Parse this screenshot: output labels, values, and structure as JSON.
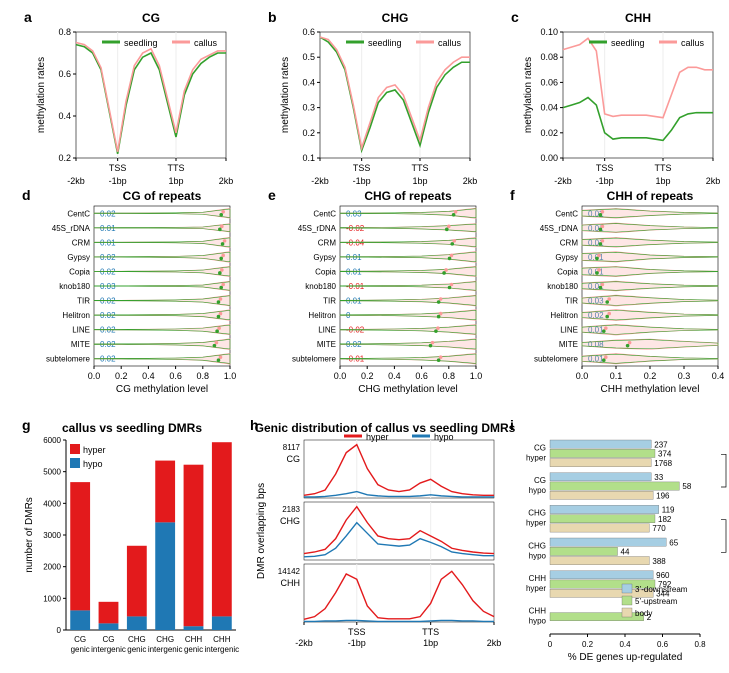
{
  "colors": {
    "seedling": "#33a02c",
    "callus": "#fb9a99",
    "hyper": "#e31a1c",
    "hypo": "#1f78b4",
    "bar_down": "#a6cee3",
    "bar_up": "#b2df8a",
    "bar_body": "#e8d8b0",
    "text": "#000000",
    "blue_label": "#1f78b4",
    "red_label": "#e31a1c",
    "axis": "#000000",
    "bg": "#ffffff",
    "grid_light": "#eeeeee"
  },
  "font": {
    "panel_letter": 14,
    "title": 12,
    "axis_label": 10,
    "tick": 9,
    "small": 8
  },
  "row1": {
    "x_ticks": [
      "-2kb",
      "-1bp",
      "1bp",
      "2kb"
    ],
    "tss_tts": [
      "TSS",
      "TTS"
    ],
    "legend": [
      "seedling",
      "callus"
    ],
    "panels": {
      "a": {
        "title": "CG",
        "ylim": [
          0.2,
          0.8
        ],
        "yticks": [
          0.2,
          0.4,
          0.6,
          0.8
        ],
        "seedling": [
          0.74,
          0.73,
          0.7,
          0.62,
          0.42,
          0.22,
          0.45,
          0.62,
          0.68,
          0.7,
          0.62,
          0.46,
          0.3,
          0.5,
          0.6,
          0.65,
          0.68,
          0.7,
          0.7
        ],
        "callus": [
          0.75,
          0.74,
          0.71,
          0.63,
          0.43,
          0.23,
          0.47,
          0.64,
          0.7,
          0.72,
          0.64,
          0.48,
          0.32,
          0.52,
          0.62,
          0.67,
          0.69,
          0.71,
          0.71
        ]
      },
      "b": {
        "title": "CHG",
        "ylim": [
          0.1,
          0.6
        ],
        "yticks": [
          0.1,
          0.2,
          0.3,
          0.4,
          0.5,
          0.6
        ],
        "seedling": [
          0.58,
          0.56,
          0.52,
          0.45,
          0.3,
          0.13,
          0.22,
          0.32,
          0.36,
          0.37,
          0.33,
          0.24,
          0.15,
          0.28,
          0.38,
          0.43,
          0.46,
          0.48,
          0.48
        ],
        "callus": [
          0.58,
          0.57,
          0.53,
          0.46,
          0.31,
          0.14,
          0.24,
          0.34,
          0.38,
          0.39,
          0.35,
          0.26,
          0.17,
          0.3,
          0.4,
          0.45,
          0.48,
          0.5,
          0.5
        ]
      },
      "c": {
        "title": "CHH",
        "ylim": [
          0.0,
          0.1
        ],
        "yticks": [
          0.0,
          0.02,
          0.04,
          0.06,
          0.08,
          0.1
        ],
        "seedling": [
          0.04,
          0.042,
          0.044,
          0.048,
          0.042,
          0.02,
          0.015,
          0.016,
          0.016,
          0.016,
          0.016,
          0.015,
          0.014,
          0.022,
          0.032,
          0.035,
          0.036,
          0.036,
          0.036
        ],
        "callus": [
          0.086,
          0.088,
          0.09,
          0.095,
          0.085,
          0.035,
          0.033,
          0.034,
          0.034,
          0.034,
          0.034,
          0.033,
          0.032,
          0.05,
          0.068,
          0.072,
          0.072,
          0.07,
          0.07
        ]
      }
    }
  },
  "row2_repeats": [
    "CentC",
    "45S_rDNA",
    "CRM",
    "Gypsy",
    "Copia",
    "knob180",
    "TIR",
    "Helitron",
    "LINE",
    "MITE",
    "subtelomere"
  ],
  "row2": {
    "d": {
      "title": "CG of repeats",
      "xlabel": "CG methylation level",
      "xlim": [
        0.0,
        1.0
      ],
      "xticks": [
        0.0,
        0.2,
        0.4,
        0.6,
        0.8,
        1.0
      ],
      "labels": [
        "0.02",
        "0.01",
        "0.01",
        "0.02",
        "0.02",
        "0.03",
        "0.02",
        "0.02",
        "0.02",
        "0.02",
        "0.02"
      ],
      "label_colors": [
        "b",
        "b",
        "b",
        "b",
        "b",
        "b",
        "b",
        "b",
        "b",
        "b",
        "b"
      ],
      "widths": [
        [
          0.03,
          0.04,
          0.05,
          0.08,
          0.18,
          0.8
        ],
        [
          0.03,
          0.04,
          0.05,
          0.08,
          0.15,
          0.7
        ],
        [
          0.03,
          0.04,
          0.05,
          0.08,
          0.2,
          0.85
        ],
        [
          0.03,
          0.04,
          0.06,
          0.1,
          0.25,
          0.9
        ],
        [
          0.03,
          0.04,
          0.06,
          0.1,
          0.25,
          0.85
        ],
        [
          0.03,
          0.04,
          0.05,
          0.08,
          0.18,
          0.8
        ],
        [
          0.04,
          0.05,
          0.07,
          0.12,
          0.28,
          0.9
        ],
        [
          0.04,
          0.05,
          0.07,
          0.12,
          0.28,
          0.88
        ],
        [
          0.04,
          0.05,
          0.07,
          0.12,
          0.28,
          0.85
        ],
        [
          0.05,
          0.06,
          0.08,
          0.14,
          0.3,
          0.9
        ],
        [
          0.04,
          0.05,
          0.07,
          0.12,
          0.28,
          0.88
        ]
      ],
      "medians": [
        0.95,
        0.94,
        0.96,
        0.95,
        0.94,
        0.95,
        0.93,
        0.93,
        0.92,
        0.9,
        0.93
      ]
    },
    "e": {
      "title": "CHG of repeats",
      "xlabel": "CHG methylation level",
      "xlim": [
        0.0,
        1.0
      ],
      "xticks": [
        0.0,
        0.2,
        0.4,
        0.6,
        0.8,
        1.0
      ],
      "labels": [
        "0.03",
        "-0.02",
        "-0.04",
        "0.01",
        "0.01",
        "-0.01",
        "0.01",
        "0",
        "-0.02",
        "0.02",
        "-0.01"
      ],
      "label_colors": [
        "b",
        "r",
        "r",
        "b",
        "b",
        "r",
        "b",
        "b",
        "r",
        "b",
        "r"
      ],
      "widths": [
        [
          0.04,
          0.05,
          0.08,
          0.15,
          0.35,
          0.85
        ],
        [
          0.05,
          0.06,
          0.1,
          0.2,
          0.4,
          0.7
        ],
        [
          0.04,
          0.05,
          0.08,
          0.15,
          0.35,
          0.8
        ],
        [
          0.04,
          0.05,
          0.08,
          0.15,
          0.4,
          0.9
        ],
        [
          0.05,
          0.06,
          0.1,
          0.18,
          0.4,
          0.85
        ],
        [
          0.04,
          0.05,
          0.08,
          0.15,
          0.35,
          0.8
        ],
        [
          0.05,
          0.07,
          0.12,
          0.22,
          0.45,
          0.9
        ],
        [
          0.05,
          0.07,
          0.12,
          0.22,
          0.45,
          0.88
        ],
        [
          0.05,
          0.07,
          0.12,
          0.22,
          0.45,
          0.85
        ],
        [
          0.06,
          0.08,
          0.14,
          0.25,
          0.5,
          0.9
        ],
        [
          0.05,
          0.07,
          0.12,
          0.22,
          0.45,
          0.88
        ]
      ],
      "medians": [
        0.85,
        0.8,
        0.84,
        0.82,
        0.78,
        0.82,
        0.74,
        0.74,
        0.72,
        0.68,
        0.74
      ]
    },
    "f": {
      "title": "CHH of repeats",
      "xlabel": "CHH methylation level",
      "xlim": [
        0.0,
        0.4
      ],
      "xticks": [
        0.0,
        0.1,
        0.2,
        0.3,
        0.4
      ],
      "labels": [
        "0.02",
        "0.01",
        "0.01",
        "0.01",
        "0.01",
        "0.01",
        "0.03",
        "0.02",
        "0.01",
        "0.08",
        "0.01"
      ],
      "label_colors": [
        "b",
        "b",
        "b",
        "b",
        "b",
        "b",
        "b",
        "b",
        "b",
        "b",
        "b"
      ],
      "widths": [
        [
          0.5,
          0.8,
          0.4,
          0.15,
          0.05
        ],
        [
          0.5,
          0.8,
          0.4,
          0.15,
          0.05
        ],
        [
          0.5,
          0.8,
          0.4,
          0.15,
          0.05
        ],
        [
          0.6,
          0.85,
          0.35,
          0.12,
          0.04
        ],
        [
          0.6,
          0.85,
          0.35,
          0.12,
          0.04
        ],
        [
          0.5,
          0.8,
          0.4,
          0.15,
          0.05
        ],
        [
          0.45,
          0.9,
          0.5,
          0.18,
          0.06
        ],
        [
          0.45,
          0.9,
          0.5,
          0.18,
          0.06
        ],
        [
          0.45,
          0.88,
          0.45,
          0.16,
          0.05
        ],
        [
          0.3,
          0.7,
          0.85,
          0.5,
          0.2
        ],
        [
          0.45,
          0.85,
          0.42,
          0.14,
          0.05
        ]
      ],
      "medians": [
        0.06,
        0.06,
        0.06,
        0.05,
        0.05,
        0.06,
        0.08,
        0.08,
        0.07,
        0.14,
        0.07
      ]
    }
  },
  "g": {
    "title": "callus vs seedling DMRs",
    "ylabel": "number of DMRs",
    "yticks": [
      0,
      1000,
      2000,
      3000,
      4000,
      5000,
      6000
    ],
    "cats": [
      "CG\ngenic",
      "CG\nintergenic",
      "CHG\ngenic",
      "CHG\nintergenic",
      "CHH\ngenic",
      "CHH\nintergenic"
    ],
    "hyper": [
      4050,
      680,
      2230,
      1950,
      5100,
      5500
    ],
    "hypo": [
      620,
      210,
      430,
      3400,
      120,
      430
    ],
    "legend": [
      "hyper",
      "hypo"
    ]
  },
  "h": {
    "title": "Genic distribution of callus vs seedling DMRs",
    "ylabel": "DMR overlapping bps",
    "x_ticks": [
      "-2kb",
      "-1bp",
      "1bp",
      "2kb"
    ],
    "tss_tts": [
      "TSS",
      "TTS"
    ],
    "legend": [
      "hyper",
      "hypo"
    ],
    "tracks": {
      "CG": {
        "max": 8117,
        "hyper": [
          0.05,
          0.08,
          0.15,
          0.45,
          0.85,
          1.0,
          0.55,
          0.25,
          0.15,
          0.12,
          0.15,
          0.28,
          0.35,
          0.22,
          0.12,
          0.08,
          0.06,
          0.05,
          0.05
        ],
        "hypo": [
          0.02,
          0.02,
          0.03,
          0.05,
          0.08,
          0.12,
          0.06,
          0.04,
          0.03,
          0.03,
          0.03,
          0.04,
          0.06,
          0.04,
          0.03,
          0.02,
          0.02,
          0.02,
          0.02
        ]
      },
      "CHG": {
        "max": 2183,
        "hyper": [
          0.12,
          0.15,
          0.2,
          0.4,
          0.75,
          1.0,
          0.7,
          0.45,
          0.4,
          0.38,
          0.4,
          0.55,
          0.45,
          0.35,
          0.22,
          0.18,
          0.15,
          0.13,
          0.12
        ],
        "hypo": [
          0.06,
          0.07,
          0.1,
          0.22,
          0.45,
          0.7,
          0.5,
          0.3,
          0.28,
          0.26,
          0.28,
          0.4,
          0.33,
          0.25,
          0.15,
          0.12,
          0.1,
          0.08,
          0.08
        ]
      },
      "CHH": {
        "max": 14142,
        "hyper": [
          0.05,
          0.1,
          0.25,
          0.55,
          0.9,
          0.8,
          0.3,
          0.08,
          0.06,
          0.06,
          0.06,
          0.1,
          0.35,
          0.8,
          0.95,
          0.7,
          0.4,
          0.2,
          0.1
        ],
        "hypo": [
          0.01,
          0.01,
          0.02,
          0.02,
          0.03,
          0.03,
          0.02,
          0.01,
          0.01,
          0.01,
          0.01,
          0.01,
          0.02,
          0.03,
          0.03,
          0.02,
          0.02,
          0.01,
          0.01
        ]
      }
    }
  },
  "i": {
    "xlabel": "% DE genes up-regulated",
    "xticks": [
      0,
      0.2,
      0.4,
      0.6,
      0.8
    ],
    "legend": [
      "3'-downstream",
      "5'-upstream",
      "body"
    ],
    "groups": [
      {
        "name": "CG\nhyper",
        "down": {
          "v": 0.54,
          "n": "237"
        },
        "up": {
          "v": 0.56,
          "n": "374"
        },
        "body": {
          "v": 0.54,
          "n": "1768"
        }
      },
      {
        "name": "CG\nhypo",
        "down": {
          "v": 0.54,
          "n": "33"
        },
        "up": {
          "v": 0.69,
          "n": "58"
        },
        "body": {
          "v": 0.55,
          "n": "196"
        }
      },
      {
        "name": "CHG\nhyper",
        "down": {
          "v": 0.58,
          "n": "119"
        },
        "up": {
          "v": 0.56,
          "n": "182"
        },
        "body": {
          "v": 0.53,
          "n": "770"
        }
      },
      {
        "name": "CHG\nhypo",
        "down": {
          "v": 0.62,
          "n": "65"
        },
        "up": {
          "v": 0.36,
          "n": "44"
        },
        "body": {
          "v": 0.53,
          "n": "388"
        }
      },
      {
        "name": "CHH\nhyper",
        "down": {
          "v": 0.55,
          "n": "960"
        },
        "up": {
          "v": 0.56,
          "n": "792"
        },
        "body": {
          "v": 0.55,
          "n": "344"
        }
      },
      {
        "name": "CHH\nhypo",
        "down": {
          "v": 0,
          "n": ""
        },
        "up": {
          "v": 0.5,
          "n": "2"
        },
        "body": {
          "v": 0,
          "n": ""
        }
      }
    ],
    "sig": [
      {
        "a": 0,
        "b": 1
      },
      {
        "a": 2,
        "b": 3
      }
    ]
  }
}
